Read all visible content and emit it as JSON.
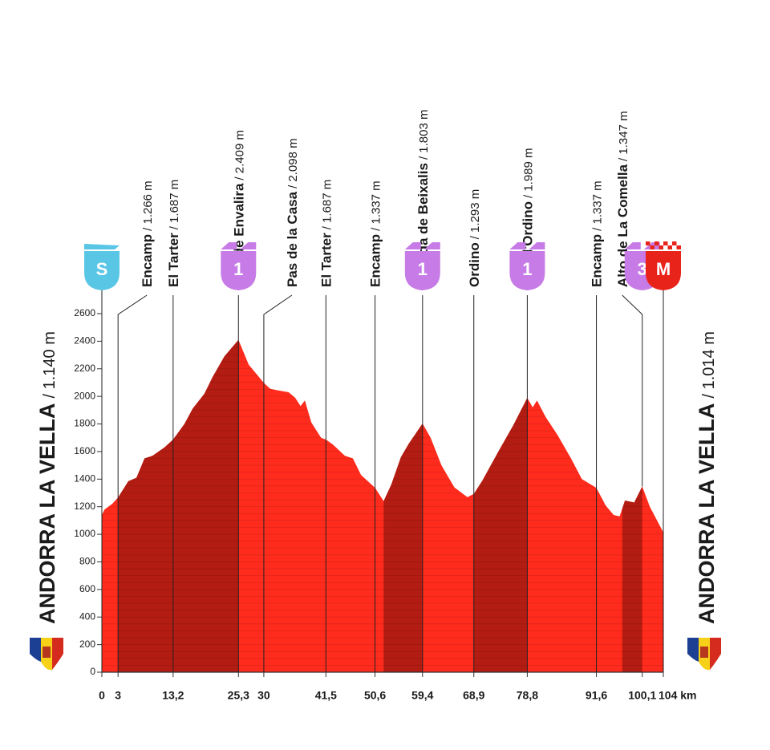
{
  "chart_data": {
    "type": "area",
    "x": [
      0,
      0.5,
      1.9,
      3,
      4.9,
      6.4,
      7.9,
      9.4,
      11.6,
      13.2,
      15.3,
      16.8,
      19,
      20.5,
      22.7,
      25.3,
      27.2,
      30,
      31.2,
      32.4,
      34.6,
      35.8,
      36.8,
      37.6,
      38.8,
      40.6,
      41.5,
      42.8,
      45,
      46.5,
      48,
      50.6,
      52.2,
      53.6,
      55.4,
      56.9,
      59.4,
      60.9,
      62.9,
      65.3,
      67.7,
      68.9,
      70.5,
      73.3,
      76.2,
      78.8,
      79.8,
      80.6,
      82.2,
      84.4,
      86.9,
      88.9,
      91.6,
      93.3,
      94.8,
      95.9,
      96.9,
      98.6,
      100.1,
      101.5,
      104
    ],
    "values": [
      1140,
      1180,
      1220,
      1266,
      1385,
      1410,
      1550,
      1570,
      1630,
      1687,
      1800,
      1910,
      2020,
      2140,
      2290,
      2409,
      2230,
      2098,
      2055,
      2045,
      2030,
      1990,
      1930,
      1970,
      1810,
      1700,
      1687,
      1650,
      1570,
      1550,
      1430,
      1337,
      1240,
      1360,
      1560,
      1660,
      1803,
      1700,
      1500,
      1340,
      1270,
      1293,
      1390,
      1590,
      1790,
      1989,
      1920,
      1970,
      1850,
      1720,
      1550,
      1400,
      1337,
      1210,
      1140,
      1130,
      1245,
      1230,
      1347,
      1200,
      1014
    ],
    "xlim": [
      0,
      104
    ],
    "ylim": [
      0,
      2600
    ],
    "yticks": [
      0,
      200,
      400,
      600,
      800,
      1000,
      1200,
      1400,
      1600,
      1800,
      2000,
      2200,
      2400,
      2600
    ],
    "xticks": [
      0,
      3,
      {
        "value": 13.2,
        "label": "13,2"
      },
      {
        "value": 25.3,
        "label": "25,3"
      },
      30,
      {
        "value": 41.5,
        "label": "41,5"
      },
      {
        "value": 50.6,
        "label": "50,6"
      },
      {
        "value": 59.4,
        "label": "59,4"
      },
      {
        "value": 68.9,
        "label": "68,9"
      },
      {
        "value": 78.8,
        "label": "78,8"
      },
      {
        "value": 91.6,
        "label": "91,6"
      },
      {
        "value": 100.1,
        "label": "100,1"
      },
      {
        "value": 104,
        "label": "104 km"
      }
    ],
    "color": "#ff2b1c",
    "climb_color": "#b31c12",
    "climbs": [
      {
        "start": 3,
        "end": 25.3
      },
      {
        "start": 52.2,
        "end": 59.4
      },
      {
        "start": 68.9,
        "end": 78.8
      },
      {
        "start": 96.4,
        "end": 100.1
      }
    ],
    "waypoints": [
      {
        "km": 3,
        "name": "Encamp",
        "altitude": "/ 1.266 m"
      },
      {
        "km": 13.2,
        "name": "El Tarter",
        "altitude": "/ 1.687 m"
      },
      {
        "km": 25.3,
        "name": "Port de Envalira",
        "altitude": "/ 2.409 m"
      },
      {
        "km": 30,
        "name": "Pas de la Casa",
        "altitude": "/ 2.098 m"
      },
      {
        "km": 41.5,
        "name": "El Tarter",
        "altitude": "/ 1.687 m"
      },
      {
        "km": 50.6,
        "name": "Encamp",
        "altitude": "/ 1.337 m"
      },
      {
        "km": 59.4,
        "name": "Collada de Beixalis",
        "altitude": "/ 1.803 m"
      },
      {
        "km": 68.9,
        "name": "Ordino",
        "altitude": "/ 1.293 m"
      },
      {
        "km": 78.8,
        "name": "Coll d'Ordino",
        "altitude": "/ 1.989 m"
      },
      {
        "km": 91.6,
        "name": "Encamp",
        "altitude": "/ 1.337 m"
      },
      {
        "km": 100.1,
        "name": "Alto de La Comella",
        "altitude": "/ 1.347 m"
      }
    ],
    "markers": [
      {
        "km": 0,
        "label": "S",
        "color": "#5ac6e6"
      },
      {
        "km": 25.3,
        "label": "1",
        "color": "#c77be6"
      },
      {
        "km": 59.4,
        "label": "1",
        "color": "#c77be6"
      },
      {
        "km": 78.8,
        "label": "1",
        "color": "#c77be6"
      },
      {
        "km": 100.1,
        "label": "3",
        "color": "#c77be6"
      },
      {
        "km": 104,
        "label": "M",
        "color": "#e8231a"
      }
    ],
    "start": {
      "name": "ANDORRA LA VELLA",
      "altitude": "/ 1.140 m"
    },
    "finish": {
      "name": "ANDORRA LA VELLA",
      "altitude": "/ 1.014 m"
    }
  }
}
